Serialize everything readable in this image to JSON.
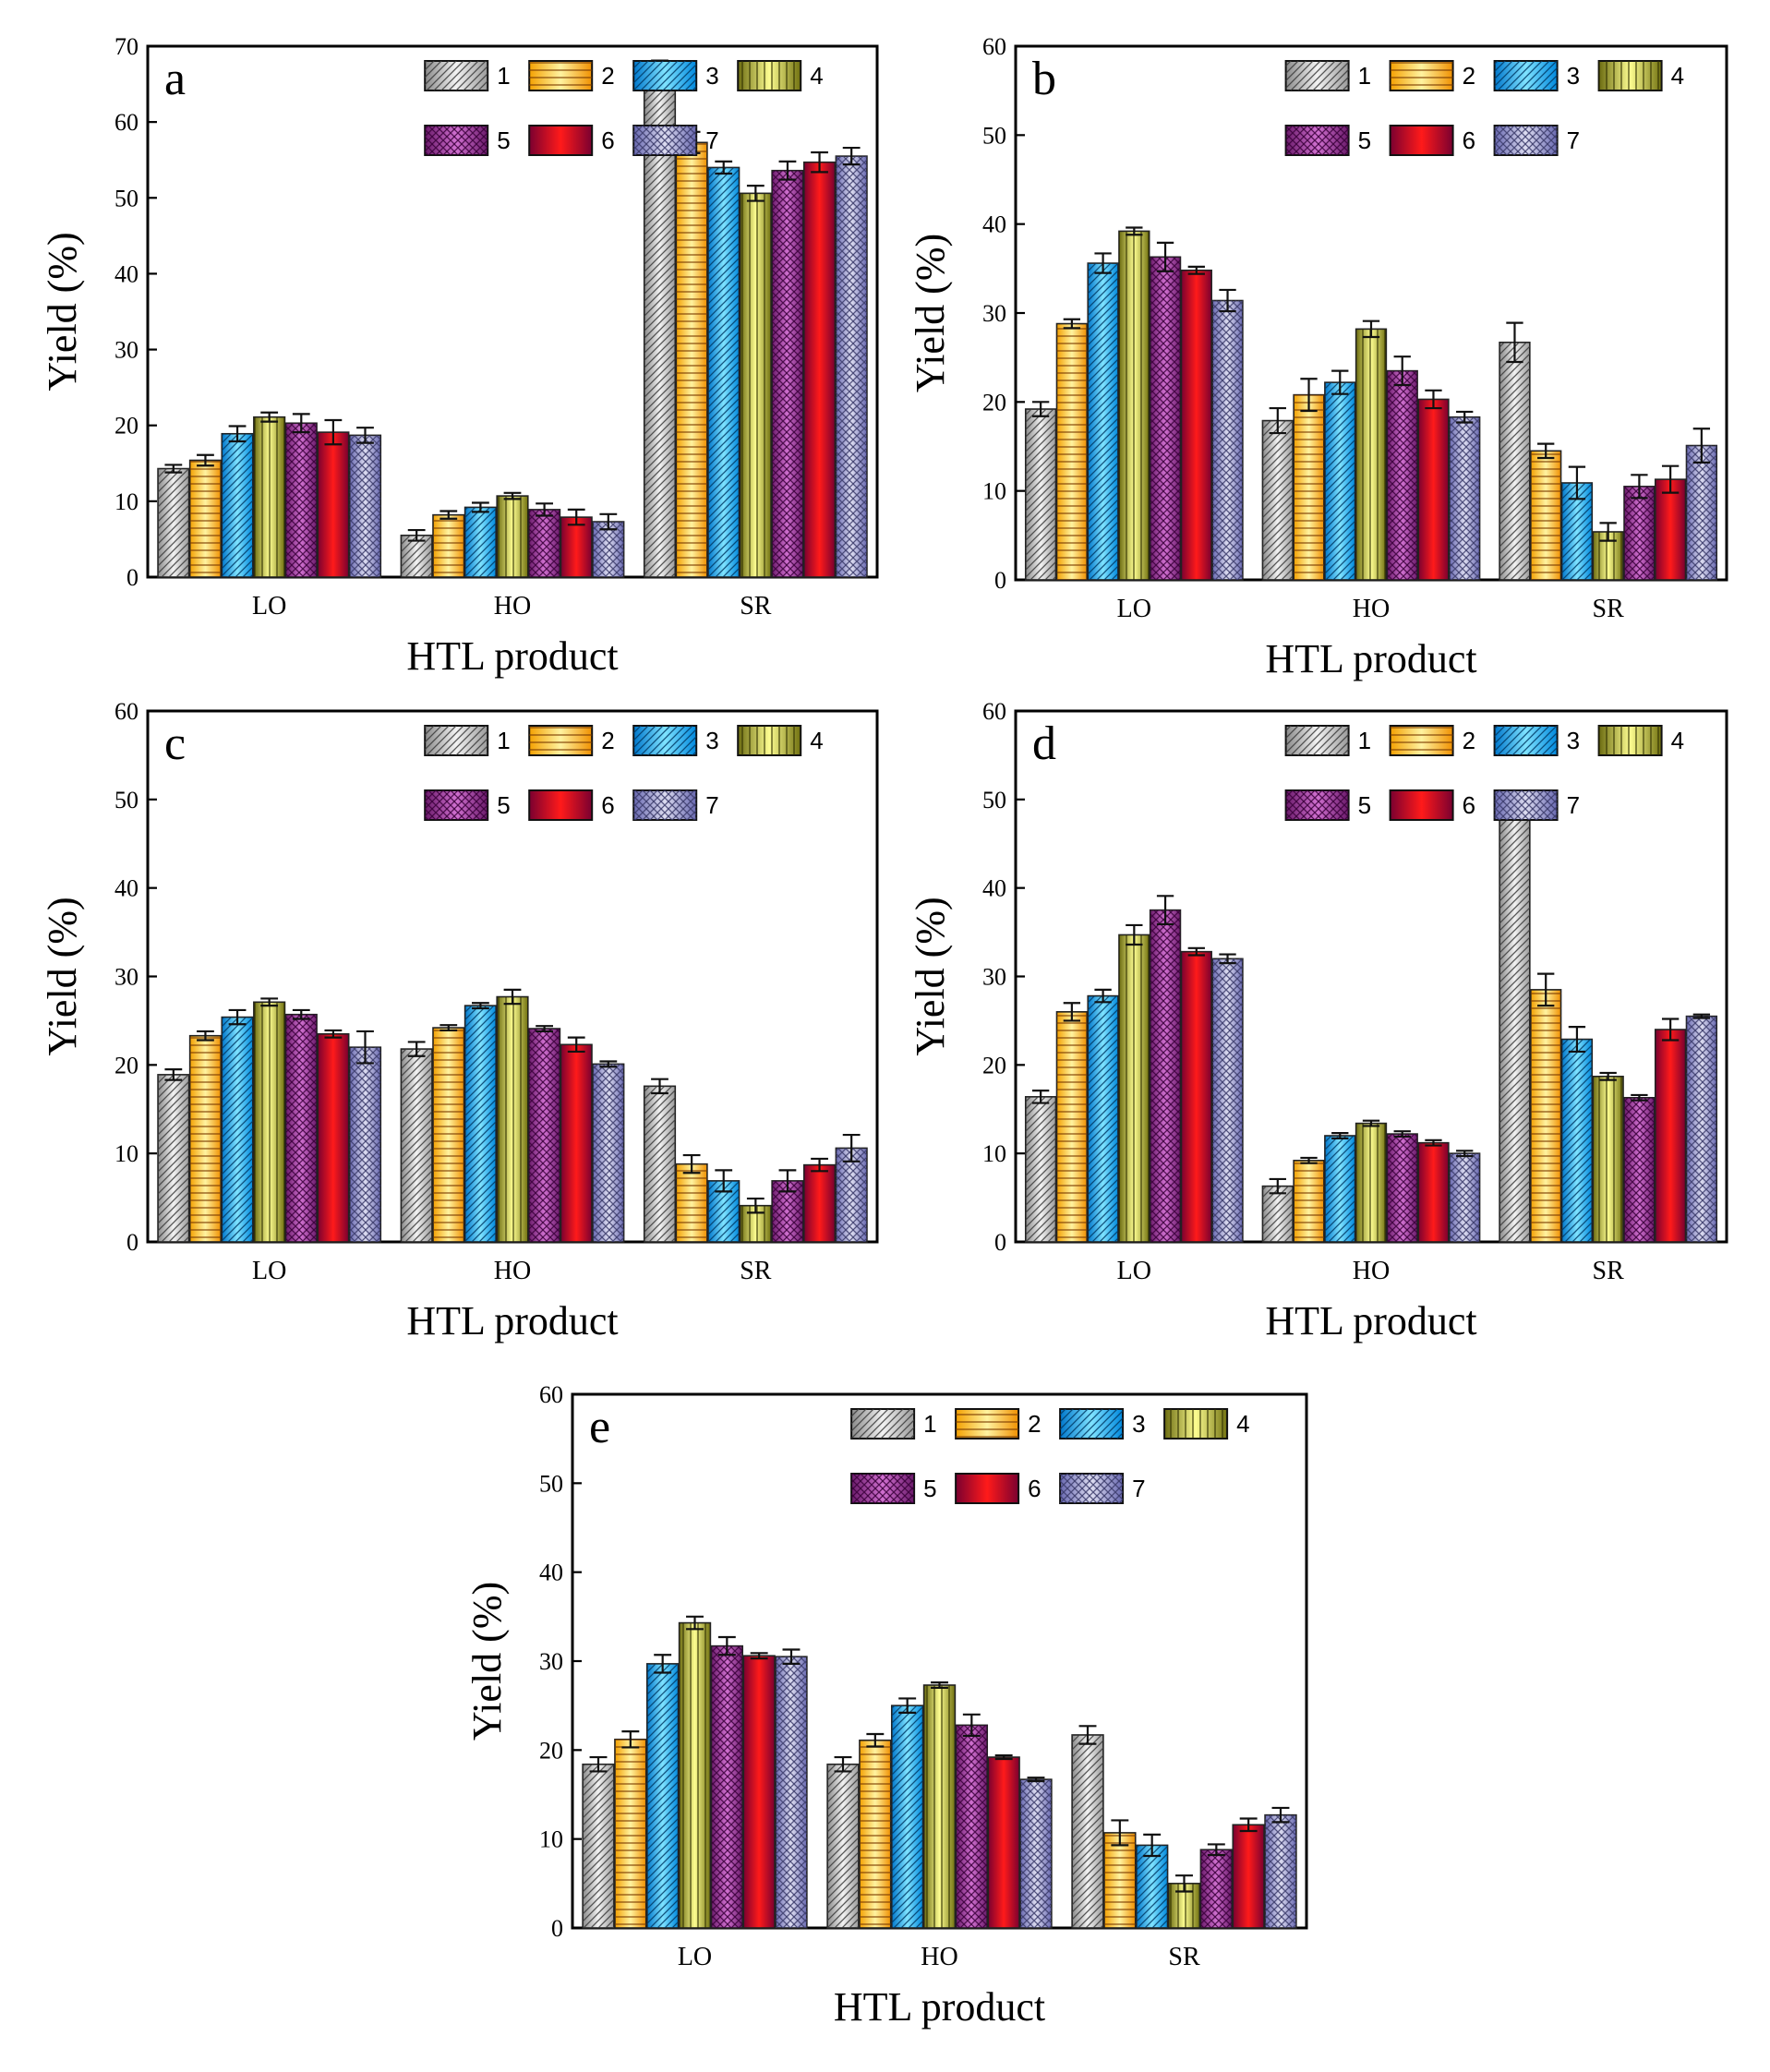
{
  "chart_data": [
    {
      "type": "bar",
      "panel_label": "a",
      "categories": [
        "LO",
        "HO",
        "SR"
      ],
      "xlabel": "HTL product",
      "ylabel": "Yield (%)",
      "ylim": [
        0,
        70
      ],
      "yticks": [
        "0",
        "10",
        "20",
        "30",
        "40",
        "50",
        "60",
        "70"
      ],
      "legend": [
        "1",
        "2",
        "3",
        "4",
        "5",
        "6",
        "7"
      ],
      "series": [
        {
          "name": "1",
          "values": [
            14.3,
            5.5,
            66.6
          ],
          "errors": [
            0.5,
            0.7,
            1.5
          ]
        },
        {
          "name": "2",
          "values": [
            15.4,
            8.2,
            57.3
          ],
          "errors": [
            0.7,
            0.5,
            1.4
          ]
        },
        {
          "name": "3",
          "values": [
            18.9,
            9.2,
            54.0
          ],
          "errors": [
            1.0,
            0.6,
            0.8
          ]
        },
        {
          "name": "4",
          "values": [
            21.1,
            10.7,
            50.6
          ],
          "errors": [
            0.6,
            0.4,
            1.0
          ]
        },
        {
          "name": "5",
          "values": [
            20.3,
            8.9,
            53.6
          ],
          "errors": [
            1.2,
            0.8,
            1.2
          ]
        },
        {
          "name": "6",
          "values": [
            19.1,
            7.9,
            54.7
          ],
          "errors": [
            1.6,
            1.0,
            1.3
          ]
        },
        {
          "name": "7",
          "values": [
            18.7,
            7.3,
            55.5
          ],
          "errors": [
            1.0,
            1.0,
            1.1
          ]
        }
      ]
    },
    {
      "type": "bar",
      "panel_label": "b",
      "categories": [
        "LO",
        "HO",
        "SR"
      ],
      "xlabel": "HTL product",
      "ylabel": "Yield (%)",
      "ylim": [
        0,
        60
      ],
      "yticks": [
        "0",
        "10",
        "20",
        "30",
        "40",
        "50",
        "60"
      ],
      "legend": [
        "1",
        "2",
        "3",
        "4",
        "5",
        "6",
        "7"
      ],
      "series": [
        {
          "name": "1",
          "values": [
            19.2,
            17.9,
            26.7
          ],
          "errors": [
            0.8,
            1.4,
            2.2
          ]
        },
        {
          "name": "2",
          "values": [
            28.8,
            20.8,
            14.5
          ],
          "errors": [
            0.5,
            1.8,
            0.8
          ]
        },
        {
          "name": "3",
          "values": [
            35.6,
            22.2,
            10.9
          ],
          "errors": [
            1.1,
            1.3,
            1.8
          ]
        },
        {
          "name": "4",
          "values": [
            39.2,
            28.2,
            5.4
          ],
          "errors": [
            0.4,
            0.9,
            1.0
          ]
        },
        {
          "name": "5",
          "values": [
            36.3,
            23.5,
            10.5
          ],
          "errors": [
            1.6,
            1.6,
            1.3
          ]
        },
        {
          "name": "6",
          "values": [
            34.8,
            20.3,
            11.3
          ],
          "errors": [
            0.4,
            1.0,
            1.5
          ]
        },
        {
          "name": "7",
          "values": [
            31.4,
            18.3,
            15.1
          ],
          "errors": [
            1.2,
            0.6,
            1.9
          ]
        }
      ]
    },
    {
      "type": "bar",
      "panel_label": "c",
      "categories": [
        "LO",
        "HO",
        "SR"
      ],
      "xlabel": "HTL product",
      "ylabel": "Yield (%)",
      "ylim": [
        0,
        60
      ],
      "yticks": [
        "0",
        "10",
        "20",
        "30",
        "40",
        "50",
        "60"
      ],
      "legend": [
        "1",
        "2",
        "3",
        "4",
        "5",
        "6",
        "7"
      ],
      "series": [
        {
          "name": "1",
          "values": [
            18.9,
            21.8,
            17.6
          ],
          "errors": [
            0.6,
            0.8,
            0.8
          ]
        },
        {
          "name": "2",
          "values": [
            23.3,
            24.2,
            8.8
          ],
          "errors": [
            0.5,
            0.3,
            1.0
          ]
        },
        {
          "name": "3",
          "values": [
            25.4,
            26.7,
            6.9
          ],
          "errors": [
            0.8,
            0.3,
            1.2
          ]
        },
        {
          "name": "4",
          "values": [
            27.1,
            27.7,
            4.1
          ],
          "errors": [
            0.4,
            0.8,
            0.8
          ]
        },
        {
          "name": "5",
          "values": [
            25.7,
            24.1,
            6.9
          ],
          "errors": [
            0.5,
            0.3,
            1.2
          ]
        },
        {
          "name": "6",
          "values": [
            23.5,
            22.3,
            8.7
          ],
          "errors": [
            0.4,
            0.8,
            0.7
          ]
        },
        {
          "name": "7",
          "values": [
            22.0,
            20.1,
            10.6
          ],
          "errors": [
            1.8,
            0.3,
            1.5
          ]
        }
      ]
    },
    {
      "type": "bar",
      "panel_label": "d",
      "categories": [
        "LO",
        "HO",
        "SR"
      ],
      "xlabel": "HTL product",
      "ylabel": "Yield (%)",
      "ylim": [
        0,
        60
      ],
      "yticks": [
        "0",
        "10",
        "20",
        "30",
        "40",
        "50",
        "60"
      ],
      "legend": [
        "1",
        "2",
        "3",
        "4",
        "5",
        "6",
        "7"
      ],
      "series": [
        {
          "name": "1",
          "values": [
            16.4,
            6.3,
            48.8
          ],
          "errors": [
            0.7,
            0.8,
            1.1
          ]
        },
        {
          "name": "2",
          "values": [
            26.0,
            9.2,
            28.5
          ],
          "errors": [
            1.0,
            0.3,
            1.8
          ]
        },
        {
          "name": "3",
          "values": [
            27.8,
            12.0,
            22.9
          ],
          "errors": [
            0.7,
            0.3,
            1.4
          ]
        },
        {
          "name": "4",
          "values": [
            34.7,
            13.4,
            18.7
          ],
          "errors": [
            1.1,
            0.3,
            0.4
          ]
        },
        {
          "name": "5",
          "values": [
            37.5,
            12.2,
            16.3
          ],
          "errors": [
            1.6,
            0.3,
            0.3
          ]
        },
        {
          "name": "6",
          "values": [
            32.8,
            11.2,
            24.0
          ],
          "errors": [
            0.4,
            0.3,
            1.2
          ]
        },
        {
          "name": "7",
          "values": [
            32.0,
            10.0,
            25.5
          ],
          "errors": [
            0.5,
            0.3,
            0.2
          ]
        }
      ]
    },
    {
      "type": "bar",
      "panel_label": "e",
      "categories": [
        "LO",
        "HO",
        "SR"
      ],
      "xlabel": "HTL product",
      "ylabel": "Yield (%)",
      "ylim": [
        0,
        60
      ],
      "yticks": [
        "0",
        "10",
        "20",
        "30",
        "40",
        "50",
        "60"
      ],
      "legend": [
        "1",
        "2",
        "3",
        "4",
        "5",
        "6",
        "7"
      ],
      "series": [
        {
          "name": "1",
          "values": [
            18.4,
            18.4,
            21.7
          ],
          "errors": [
            0.8,
            0.8,
            1.0
          ]
        },
        {
          "name": "2",
          "values": [
            21.2,
            21.1,
            10.7
          ],
          "errors": [
            0.9,
            0.7,
            1.4
          ]
        },
        {
          "name": "3",
          "values": [
            29.7,
            25.0,
            9.3
          ],
          "errors": [
            1.0,
            0.8,
            1.2
          ]
        },
        {
          "name": "4",
          "values": [
            34.3,
            27.3,
            5.0
          ],
          "errors": [
            0.7,
            0.3,
            0.9
          ]
        },
        {
          "name": "5",
          "values": [
            31.7,
            22.8,
            8.8
          ],
          "errors": [
            1.0,
            1.2,
            0.6
          ]
        },
        {
          "name": "6",
          "values": [
            30.6,
            19.2,
            11.6
          ],
          "errors": [
            0.3,
            0.2,
            0.7
          ]
        },
        {
          "name": "7",
          "values": [
            30.5,
            16.7,
            12.7
          ],
          "errors": [
            0.8,
            0.2,
            0.8
          ]
        }
      ]
    }
  ],
  "series_colors": {
    "1": [
      "#8a8a8a",
      "#f2f2f2",
      "#9a9a9a"
    ],
    "2": [
      "#f4a000",
      "#fff3a0",
      "#f09000"
    ],
    "3": [
      "#0077cc",
      "#7fe3ff",
      "#0088dd"
    ],
    "4": [
      "#6b6b10",
      "#fdfd90",
      "#70700f"
    ],
    "5": [
      "#6a1a6a",
      "#d070d0",
      "#6a1a6a"
    ],
    "6": [
      "#7a0030",
      "#ff1a1a",
      "#7a0030"
    ],
    "7": [
      "#6868b0",
      "#dcdcf0",
      "#6868b0"
    ]
  }
}
